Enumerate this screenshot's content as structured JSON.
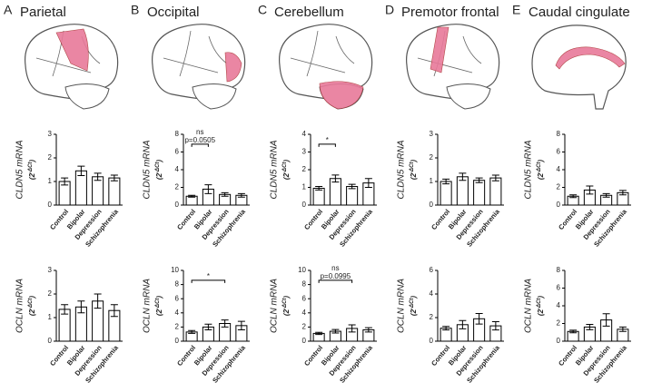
{
  "chart_data": [
    {
      "type": "bar",
      "panel": "A",
      "title": "Parietal",
      "ylabel": "CLDN5 mRNA",
      "yunit": {
        "base": "(2",
        "exponent": "-ΔCt",
        "close": ")"
      },
      "categories": [
        "Control",
        "Bipolar",
        "Depression",
        "Schizophrenia"
      ],
      "values": [
        1.0,
        1.45,
        1.2,
        1.15
      ],
      "errors": [
        0.15,
        0.2,
        0.15,
        0.12
      ],
      "ylim": [
        0,
        3
      ],
      "yticks": [
        0,
        1,
        2,
        3
      ]
    },
    {
      "type": "bar",
      "panel": "B",
      "title": "Occipital",
      "ylabel": "CLDN5 mRNA",
      "yunit": {
        "base": "(2",
        "exponent": "-ΔCt",
        "close": ")"
      },
      "categories": [
        "Control",
        "Bipolar",
        "Depression",
        "Schizophrenia"
      ],
      "values": [
        1.0,
        1.8,
        1.2,
        1.1
      ],
      "errors": [
        0.1,
        0.5,
        0.2,
        0.2
      ],
      "ylim": [
        0,
        8
      ],
      "yticks": [
        0,
        2,
        4,
        6,
        8
      ],
      "annotations": [
        {
          "text": [
            "ns",
            "p=0.0505"
          ],
          "between": [
            "Control",
            "Bipolar"
          ]
        }
      ]
    },
    {
      "type": "bar",
      "panel": "C",
      "title": "Cerebellum",
      "ylabel": "CLDN5 mRNA",
      "yunit": {
        "base": "(2",
        "exponent": "-ΔCt",
        "close": ")"
      },
      "categories": [
        "Control",
        "Bipolar",
        "Depression",
        "Schizophrenia"
      ],
      "values": [
        0.95,
        1.5,
        1.05,
        1.25
      ],
      "errors": [
        0.1,
        0.2,
        0.12,
        0.25
      ],
      "ylim": [
        0,
        4
      ],
      "yticks": [
        0,
        1,
        2,
        3,
        4
      ],
      "annotations": [
        {
          "text": [
            "*"
          ],
          "between": [
            "Control",
            "Bipolar"
          ]
        }
      ]
    },
    {
      "type": "bar",
      "panel": "D",
      "title": "Premotor frontal",
      "ylabel": "CLDN5 mRNA",
      "yunit": {
        "base": "(2",
        "exponent": "-ΔCt",
        "close": ")"
      },
      "categories": [
        "Control",
        "Bipolar",
        "Depression",
        "Schizophrenia"
      ],
      "values": [
        1.0,
        1.2,
        1.05,
        1.15
      ],
      "errors": [
        0.1,
        0.15,
        0.1,
        0.12
      ],
      "ylim": [
        0,
        3
      ],
      "yticks": [
        0,
        1,
        2,
        3
      ]
    },
    {
      "type": "bar",
      "panel": "E",
      "title": "Caudal cingulate",
      "ylabel": "CLDN5 mRNA",
      "yunit": {
        "base": "(2",
        "exponent": "-ΔCt",
        "close": ")"
      },
      "categories": [
        "Control",
        "Bipolar",
        "Depression",
        "Schizophrenia"
      ],
      "values": [
        1.0,
        1.7,
        1.1,
        1.4
      ],
      "errors": [
        0.15,
        0.45,
        0.2,
        0.25
      ],
      "ylim": [
        0,
        8
      ],
      "yticks": [
        0,
        2,
        4,
        6,
        8
      ]
    },
    {
      "type": "bar",
      "ylabel": "OCLN mRNA",
      "yunit": {
        "base": "(2",
        "exponent": "-ΔCt",
        "close": ")"
      },
      "categories": [
        "Control",
        "Bipolar",
        "Depression",
        "Schizophrenia"
      ],
      "values": [
        1.35,
        1.45,
        1.7,
        1.3
      ],
      "errors": [
        0.2,
        0.25,
        0.3,
        0.25
      ],
      "ylim": [
        0,
        3
      ],
      "yticks": [
        0,
        1,
        2,
        3
      ]
    },
    {
      "type": "bar",
      "ylabel": "OCLN mRNA",
      "yunit": {
        "base": "(2",
        "exponent": "-ΔCt",
        "close": ")"
      },
      "categories": [
        "Control",
        "Bipolar",
        "Depression",
        "Schizophrenia"
      ],
      "values": [
        1.3,
        2.0,
        2.5,
        2.2
      ],
      "errors": [
        0.2,
        0.4,
        0.5,
        0.6
      ],
      "ylim": [
        0,
        10
      ],
      "yticks": [
        0,
        2,
        4,
        6,
        8,
        10
      ],
      "annotations": [
        {
          "text": [
            "*"
          ],
          "between": [
            "Control",
            "Depression"
          ]
        }
      ]
    },
    {
      "type": "bar",
      "ylabel": "OCLN mRNA",
      "yunit": {
        "base": "(2",
        "exponent": "-ΔCt",
        "close": ")"
      },
      "categories": [
        "Control",
        "Bipolar",
        "Depression",
        "Schizophrenia"
      ],
      "values": [
        1.1,
        1.4,
        1.8,
        1.6
      ],
      "errors": [
        0.15,
        0.25,
        0.5,
        0.3
      ],
      "ylim": [
        0,
        10
      ],
      "yticks": [
        0,
        2,
        4,
        6,
        8,
        10
      ],
      "annotations": [
        {
          "text": [
            "ns",
            "p=0.0995"
          ],
          "between": [
            "Control",
            "Depression"
          ]
        }
      ]
    },
    {
      "type": "bar",
      "ylabel": "OCLN mRNA",
      "yunit": {
        "base": "(2",
        "exponent": "-ΔCt",
        "close": ")"
      },
      "categories": [
        "Control",
        "Bipolar",
        "Depression",
        "Schizophrenia"
      ],
      "values": [
        1.1,
        1.4,
        1.9,
        1.3
      ],
      "errors": [
        0.15,
        0.35,
        0.45,
        0.35
      ],
      "ylim": [
        0,
        6
      ],
      "yticks": [
        0,
        2,
        4,
        6
      ]
    },
    {
      "type": "bar",
      "ylabel": "OCLN mRNA",
      "yunit": {
        "base": "(2",
        "exponent": "-ΔCt",
        "close": ")"
      },
      "categories": [
        "Control",
        "Bipolar",
        "Depression",
        "Schizophrenia"
      ],
      "values": [
        1.1,
        1.6,
        2.4,
        1.35
      ],
      "errors": [
        0.15,
        0.3,
        0.7,
        0.25
      ],
      "ylim": [
        0,
        8
      ],
      "yticks": [
        0,
        2,
        4,
        6,
        8
      ]
    }
  ]
}
